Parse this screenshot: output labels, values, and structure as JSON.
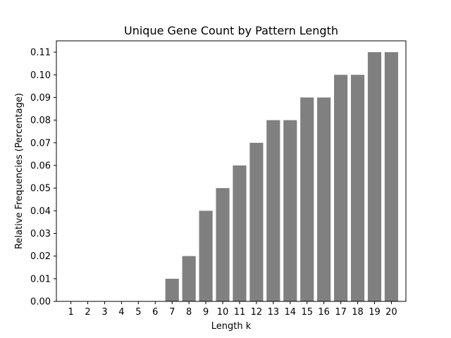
{
  "chart_data": {
    "type": "bar",
    "title": "Unique Gene Count by Pattern Length",
    "xlabel": "Length k",
    "ylabel": "Relative Frequencies (Percentage)",
    "categories": [
      "1",
      "2",
      "3",
      "4",
      "5",
      "6",
      "7",
      "8",
      "9",
      "10",
      "11",
      "12",
      "13",
      "14",
      "15",
      "16",
      "17",
      "18",
      "19",
      "20"
    ],
    "values": [
      0,
      0,
      0,
      0,
      0,
      0,
      0.01,
      0.02,
      0.04,
      0.05,
      0.06,
      0.07,
      0.08,
      0.08,
      0.09,
      0.09,
      0.1,
      0.1,
      0.11,
      0.11
    ],
    "ylim": [
      0,
      0.115
    ],
    "yticks": [
      "0.00",
      "0.01",
      "0.02",
      "0.03",
      "0.04",
      "0.05",
      "0.06",
      "0.07",
      "0.08",
      "0.09",
      "0.10",
      "0.11"
    ],
    "bar_color": "#808080",
    "grid": false
  }
}
